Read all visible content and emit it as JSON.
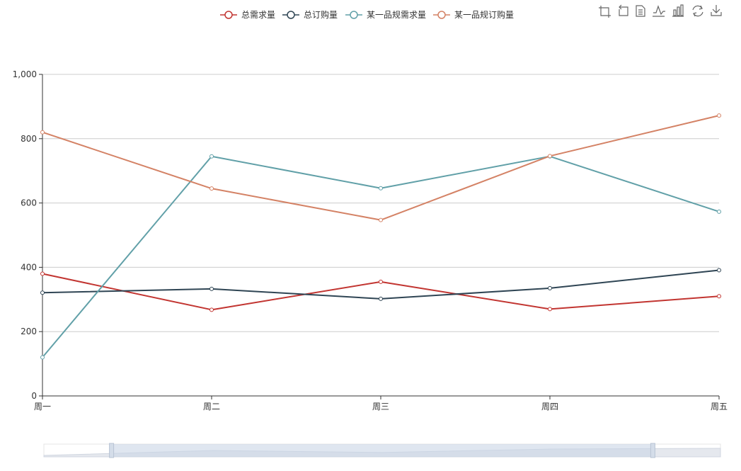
{
  "legend": {
    "items": [
      {
        "label": "总需求量",
        "color": "#c23531"
      },
      {
        "label": "总订购量",
        "color": "#2f4554"
      },
      {
        "label": "某一品规需求量",
        "color": "#61a0a8"
      },
      {
        "label": "某一品规订购量",
        "color": "#d48265"
      }
    ]
  },
  "toolbox": {
    "icons": [
      "zoom-select-icon",
      "zoom-reset-icon",
      "data-view-icon",
      "line-chart-icon",
      "bar-chart-icon",
      "restore-icon",
      "save-image-icon"
    ]
  },
  "chart_data": {
    "type": "line",
    "categories": [
      "周一",
      "周二",
      "周三",
      "周四",
      "周五"
    ],
    "ylim": [
      0,
      1000
    ],
    "yticks": [
      0,
      200,
      400,
      600,
      800,
      1000
    ],
    "ytick_labels": [
      "0",
      "200",
      "400",
      "600",
      "800",
      "1,000"
    ],
    "grid": true,
    "legend_position": "top-center",
    "series": [
      {
        "name": "总需求量",
        "color": "#c23531",
        "values": [
          380,
          268,
          355,
          270,
          310
        ]
      },
      {
        "name": "总订购量",
        "color": "#2f4554",
        "values": [
          321,
          333,
          302,
          335,
          391
        ]
      },
      {
        "name": "某一品规需求量",
        "color": "#61a0a8",
        "values": [
          120,
          745,
          646,
          745,
          573
        ]
      },
      {
        "name": "某一品规订购量",
        "color": "#d48265",
        "values": [
          820,
          645,
          547,
          746,
          872
        ]
      }
    ],
    "data_zoom": {
      "start": 0.1,
      "end": 0.9
    }
  }
}
